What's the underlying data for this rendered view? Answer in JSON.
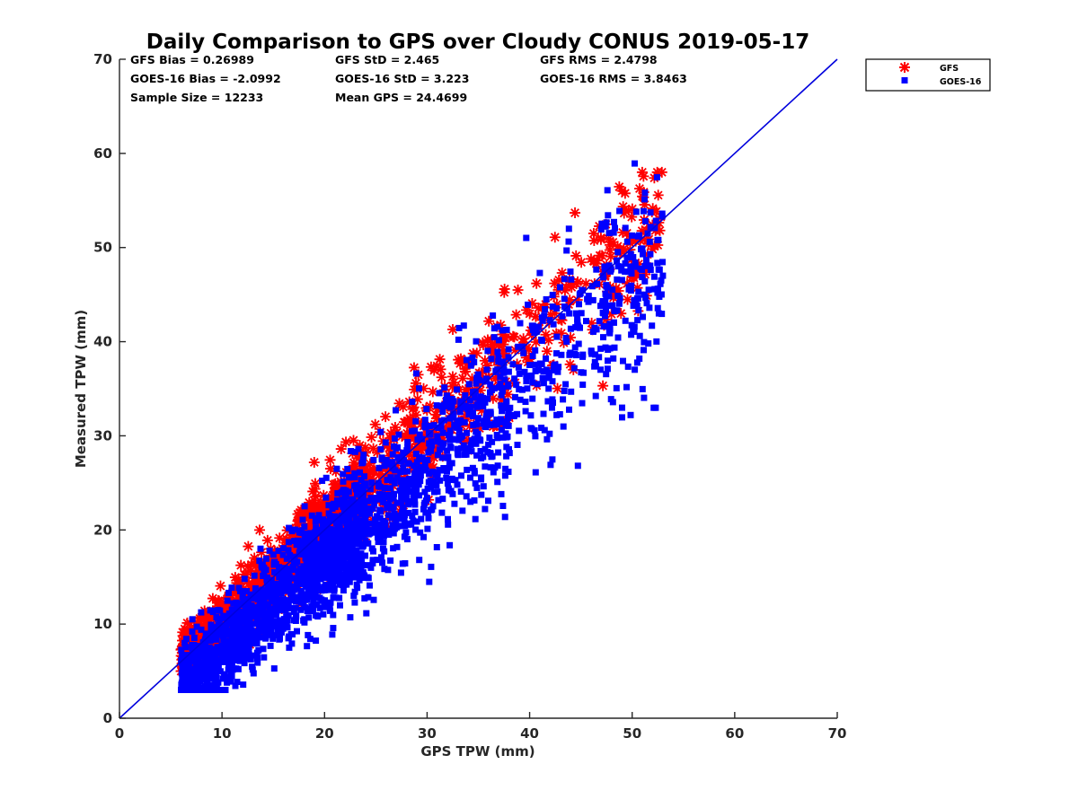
{
  "chart_data": {
    "type": "scatter",
    "title": "Daily Comparison to GPS over Cloudy CONUS 2019-05-17",
    "xlabel": "GPS TPW (mm)",
    "ylabel": "Measured TPW (mm)",
    "xlim": [
      0,
      70
    ],
    "ylim": [
      0,
      70
    ],
    "xticks": [
      "0",
      "10",
      "20",
      "30",
      "40",
      "50",
      "60",
      "70"
    ],
    "yticks": [
      "0",
      "10",
      "20",
      "30",
      "40",
      "50",
      "60",
      "70"
    ],
    "grid": false,
    "legend_position": "outside top-right",
    "stats": [
      [
        "GFS Bias = 0.26989",
        "GFS StD = 2.465",
        "GFS RMS = 2.4798"
      ],
      [
        "GOES-16 Bias = -2.0992",
        "GOES-16 StD = 3.223",
        "GOES-16 RMS = 3.8463"
      ],
      [
        "Sample Size = 12233",
        "Mean GPS = 24.4699",
        ""
      ]
    ],
    "reference_line": {
      "name": "1:1 line",
      "x": [
        0,
        70
      ],
      "y": [
        0,
        70
      ],
      "color": "#0000dd"
    },
    "series": [
      {
        "name": "GOES-16",
        "marker": "square",
        "color": "#0000ff",
        "bias": -2.0992,
        "std": 3.223,
        "slope": 0.95,
        "x_range": [
          5.5,
          55
        ],
        "y_range": [
          3,
          60
        ]
      },
      {
        "name": "GFS",
        "marker": "asterisk",
        "color": "#ff0000",
        "bias": 0.26989,
        "std": 2.465,
        "slope": 1.0,
        "x_range": [
          5.5,
          55
        ],
        "y_range": [
          5,
          58
        ]
      }
    ],
    "sample_size": 12233,
    "mean_gps": 24.4699
  }
}
